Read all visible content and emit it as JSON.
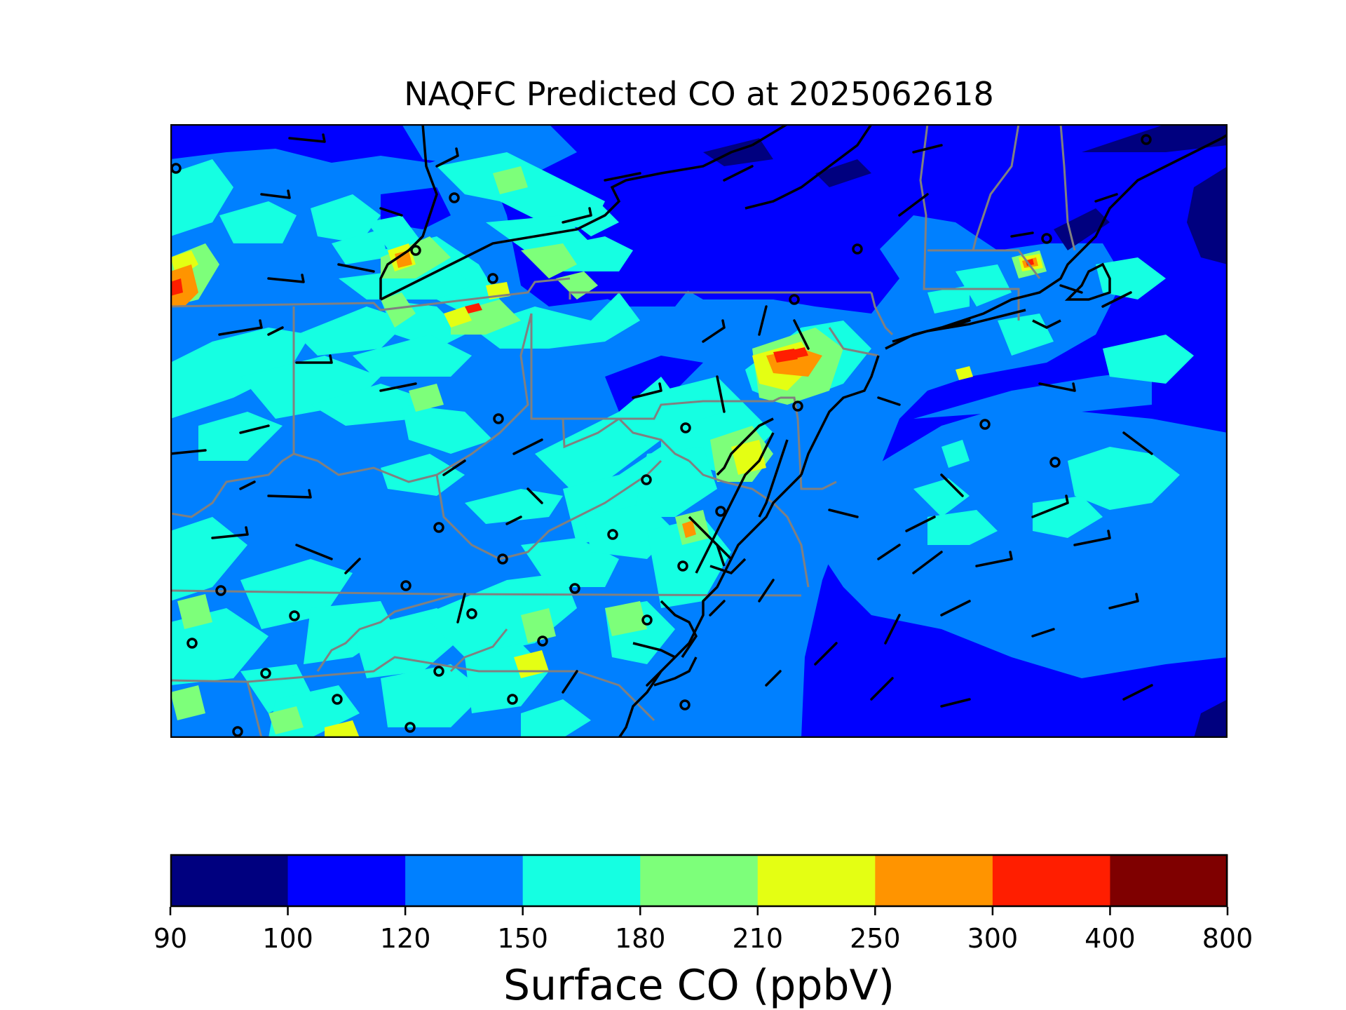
{
  "title": "NAQFC Predicted CO at 2025062618",
  "colorbar": {
    "label": "Surface CO (ppbV)",
    "ticks": [
      "90",
      "100",
      "120",
      "150",
      "180",
      "210",
      "250",
      "300",
      "400",
      "800"
    ],
    "colors": [
      "#00007f",
      "#0000ff",
      "#0080ff",
      "#15ffe2",
      "#7dff7a",
      "#e4ff13",
      "#ff9400",
      "#ff1e00",
      "#7f0000"
    ]
  },
  "map": {
    "background_color": "#0080ff",
    "coastline_color": "#000000",
    "state_border_color": "#808080",
    "wind_barb_color": "#000000",
    "station_marker": "open-circle"
  }
}
